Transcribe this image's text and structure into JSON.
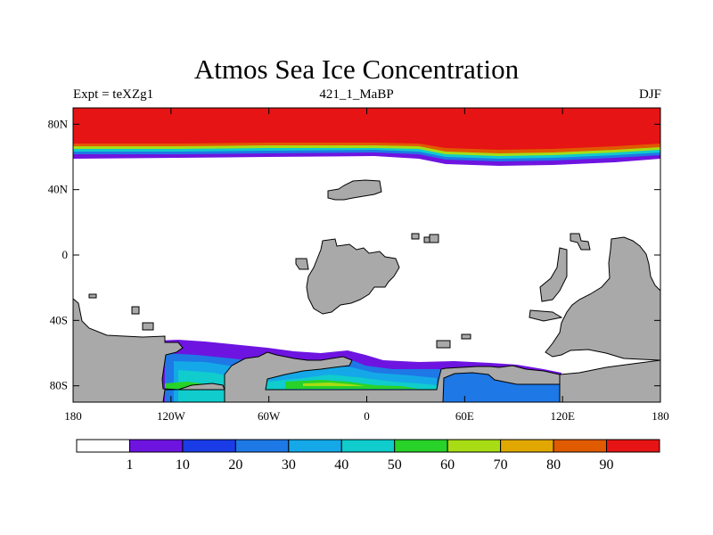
{
  "chart_data": {
    "type": "contour-map",
    "title": "Atmos Sea Ice Concentration",
    "subtitle_left": "Expt = teXZg1",
    "subtitle_center": "421_1_MaBP",
    "subtitle_right": "DJF",
    "x_range": [
      -180,
      180
    ],
    "y_range": [
      -90,
      90
    ],
    "x_ticks": [
      {
        "value": -180,
        "label": "180"
      },
      {
        "value": -120,
        "label": "120W"
      },
      {
        "value": -60,
        "label": "60W"
      },
      {
        "value": 0,
        "label": "0"
      },
      {
        "value": 60,
        "label": "60E"
      },
      {
        "value": 120,
        "label": "120E"
      },
      {
        "value": 180,
        "label": "180"
      }
    ],
    "y_ticks": [
      {
        "value": 80,
        "label": "80N"
      },
      {
        "value": 40,
        "label": "40N"
      },
      {
        "value": 0,
        "label": "0"
      },
      {
        "value": -40,
        "label": "40S"
      },
      {
        "value": -80,
        "label": "80S"
      }
    ],
    "colorbar": {
      "levels": [
        "1",
        "10",
        "20",
        "30",
        "40",
        "50",
        "60",
        "70",
        "80",
        "90"
      ],
      "colors": [
        "#ffffff",
        "#6e14e0",
        "#1a3ce6",
        "#1e78e6",
        "#14a8e8",
        "#10cccc",
        "#28d228",
        "#a8dc14",
        "#e0a800",
        "#e05a00",
        "#e61414"
      ]
    },
    "land_color": "#a9a9a9",
    "regions": {
      "arctic_ice_edge": [
        {
          "lon": -180,
          "lat": 58
        },
        {
          "lon": -120,
          "lat": 58
        },
        {
          "lon": -60,
          "lat": 59
        },
        {
          "lon": 0,
          "lat": 59
        },
        {
          "lon": 40,
          "lat": 57
        },
        {
          "lon": 80,
          "lat": 56
        },
        {
          "lon": 120,
          "lat": 56
        },
        {
          "lon": 160,
          "lat": 58
        },
        {
          "lon": 180,
          "lat": 59
        }
      ],
      "arctic_full_ice_edge": [
        {
          "lon": -180,
          "lat": 66
        },
        {
          "lon": -100,
          "lat": 66
        },
        {
          "lon": -40,
          "lat": 67
        },
        {
          "lon": 20,
          "lat": 66
        },
        {
          "lon": 60,
          "lat": 62
        },
        {
          "lon": 100,
          "lat": 62
        },
        {
          "lon": 140,
          "lat": 64
        },
        {
          "lon": 180,
          "lat": 66
        }
      ]
    }
  }
}
